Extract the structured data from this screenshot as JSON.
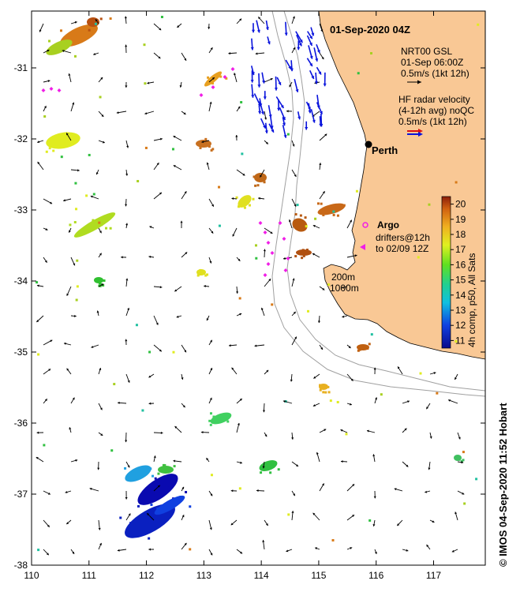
{
  "title": "01-Sep-2020 04Z",
  "axes": {
    "x_ticks": [
      "110",
      "111",
      "112",
      "113",
      "114",
      "115",
      "116",
      "117"
    ],
    "y_ticks": [
      "-31",
      "-32",
      "-33",
      "-34",
      "-35",
      "-36",
      "-37",
      "-38"
    ],
    "lon_range": [
      110,
      117.9
    ],
    "lat_range": [
      -38,
      -30.2
    ]
  },
  "legend": {
    "model_title": "NRT00 GSL",
    "model_time": "01-Sep 06:00Z",
    "model_scale": "0.5m/s (1kt 12h)",
    "radar_title": "HF radar velocity",
    "radar_sub": "(4-12h avg) noQC",
    "radar_scale": "0.5m/s (1kt 12h)",
    "argo": "Argo",
    "drifters_line1": "drifters@12h",
    "drifters_line2": "to 02/09 12Z",
    "isobath_200": "200m",
    "isobath_1000": "1000m"
  },
  "city": {
    "name": "Perth",
    "lon": 115.86,
    "lat": -31.95
  },
  "colorbar": {
    "label": "4h comp, p50, All Sats",
    "min": 10.5,
    "max": 20.5,
    "ticks": [
      "11",
      "12",
      "13",
      "14",
      "15",
      "16",
      "17",
      "18",
      "19",
      "20"
    ]
  },
  "credit": "© IMOS 04-Sep-2020 11:52 Hobart",
  "colors": {
    "land": "#f9c895",
    "model_arrow": "#000000",
    "radar_arrow": "#0a14dc",
    "drifter": "#f01ee6",
    "isobath": "#a0a0a0"
  }
}
